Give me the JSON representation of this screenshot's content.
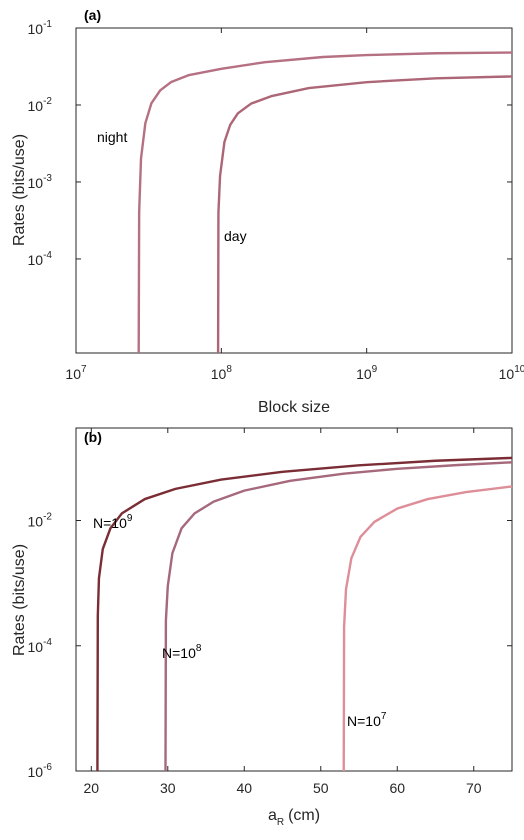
{
  "chart_data": [
    {
      "panel_label": "(a)",
      "type": "line",
      "xlabel": "Block size",
      "ylabel": "Rates (bits/use)",
      "xscale": "log",
      "yscale": "log",
      "xlim": [
        10000000,
        10000000000
      ],
      "ylim": [
        6e-06,
        0.1
      ],
      "x_ticks": [
        {
          "base": "10",
          "exp": "7",
          "value": 10000000
        },
        {
          "base": "10",
          "exp": "8",
          "value": 100000000
        },
        {
          "base": "10",
          "exp": "9",
          "value": 1000000000
        },
        {
          "base": "10",
          "exp": "10",
          "value": 10000000000
        }
      ],
      "y_ticks": [
        {
          "base": "10",
          "exp": "-1",
          "value": 0.1
        },
        {
          "base": "10",
          "exp": "-2",
          "value": 0.01
        },
        {
          "base": "10",
          "exp": "-3",
          "value": 0.001
        },
        {
          "base": "10",
          "exp": "-4",
          "value": 0.0001
        }
      ],
      "series": [
        {
          "name": "night",
          "color": "#b57082",
          "threshold": 27000000,
          "points": [
            [
              27000000,
              6e-06
            ],
            [
              27200000,
              0.0004
            ],
            [
              28000000,
              0.002
            ],
            [
              30000000,
              0.0058
            ],
            [
              33000000,
              0.0105
            ],
            [
              38000000,
              0.0155
            ],
            [
              45000000,
              0.0198
            ],
            [
              60000000,
              0.0245
            ],
            [
              100000000,
              0.0295
            ],
            [
              200000000,
              0.036
            ],
            [
              500000000,
              0.042
            ],
            [
              1000000000,
              0.0445
            ],
            [
              3000000000,
              0.047
            ],
            [
              10000000000,
              0.048
            ]
          ]
        },
        {
          "name": "day",
          "color": "#ad6677",
          "threshold": 95000000,
          "points": [
            [
              95000000,
              6e-06
            ],
            [
              95500000,
              0.0004
            ],
            [
              98000000,
              0.0012
            ],
            [
              105000000,
              0.0033
            ],
            [
              115000000,
              0.0055
            ],
            [
              130000000,
              0.0078
            ],
            [
              160000000,
              0.0104
            ],
            [
              220000000,
              0.013
            ],
            [
              400000000,
              0.0166
            ],
            [
              1000000000,
              0.0198
            ],
            [
              3000000000,
              0.0222
            ],
            [
              10000000000,
              0.0235
            ]
          ]
        }
      ]
    },
    {
      "panel_label": "(b)",
      "type": "line",
      "xlabel_main": "a",
      "xlabel_sub": "R",
      "xlabel_unit": "(cm)",
      "ylabel": "Rates (bits/use)",
      "xscale": "linear",
      "yscale": "log",
      "xlim": [
        18,
        75
      ],
      "ylim": [
        1e-06,
        0.3
      ],
      "x_ticks": [
        {
          "label": "20",
          "value": 20
        },
        {
          "label": "30",
          "value": 30
        },
        {
          "label": "40",
          "value": 40
        },
        {
          "label": "50",
          "value": 50
        },
        {
          "label": "60",
          "value": 60
        },
        {
          "label": "70",
          "value": 70
        }
      ],
      "y_ticks": [
        {
          "base": "10",
          "exp": "-2",
          "value": 0.01
        },
        {
          "base": "10",
          "exp": "-4",
          "value": 0.0001
        },
        {
          "base": "10",
          "exp": "-6",
          "value": 1e-06
        }
      ],
      "series": [
        {
          "name": "N=10^9",
          "color": "#7a2d34",
          "threshold": 20.8,
          "points": [
            [
              20.8,
              1e-06
            ],
            [
              20.85,
              0.0003
            ],
            [
              21,
              0.0012
            ],
            [
              21.5,
              0.0035
            ],
            [
              22.5,
              0.0075
            ],
            [
              24,
              0.013
            ],
            [
              27,
              0.022
            ],
            [
              31,
              0.032
            ],
            [
              37,
              0.045
            ],
            [
              45,
              0.06
            ],
            [
              55,
              0.076
            ],
            [
              65,
              0.09
            ],
            [
              75,
              0.1
            ]
          ]
        },
        {
          "name": "N=10^8",
          "color": "#a6687b",
          "threshold": 29.7,
          "points": [
            [
              29.7,
              1e-06
            ],
            [
              29.75,
              0.00025
            ],
            [
              30,
              0.0009
            ],
            [
              30.6,
              0.003
            ],
            [
              31.8,
              0.0075
            ],
            [
              33.5,
              0.013
            ],
            [
              36,
              0.02
            ],
            [
              40,
              0.03
            ],
            [
              46,
              0.043
            ],
            [
              53,
              0.056
            ],
            [
              60,
              0.067
            ],
            [
              68,
              0.077
            ],
            [
              75,
              0.085
            ]
          ]
        },
        {
          "name": "N=10^7",
          "color": "#de8e98",
          "threshold": 53.0,
          "points": [
            [
              53,
              1e-06
            ],
            [
              53.05,
              0.0002
            ],
            [
              53.3,
              0.0008
            ],
            [
              54,
              0.0025
            ],
            [
              55.2,
              0.0055
            ],
            [
              57,
              0.0095
            ],
            [
              60,
              0.0155
            ],
            [
              64,
              0.022
            ],
            [
              69,
              0.0285
            ],
            [
              75,
              0.035
            ]
          ]
        }
      ]
    }
  ],
  "annotations": {
    "a": {
      "night": "night",
      "day": "day"
    },
    "b": {
      "n9_prefix": "N=10",
      "n9_exp": "9",
      "n8_prefix": "N=10",
      "n8_exp": "8",
      "n7_prefix": "N=10",
      "n7_exp": "7"
    }
  }
}
